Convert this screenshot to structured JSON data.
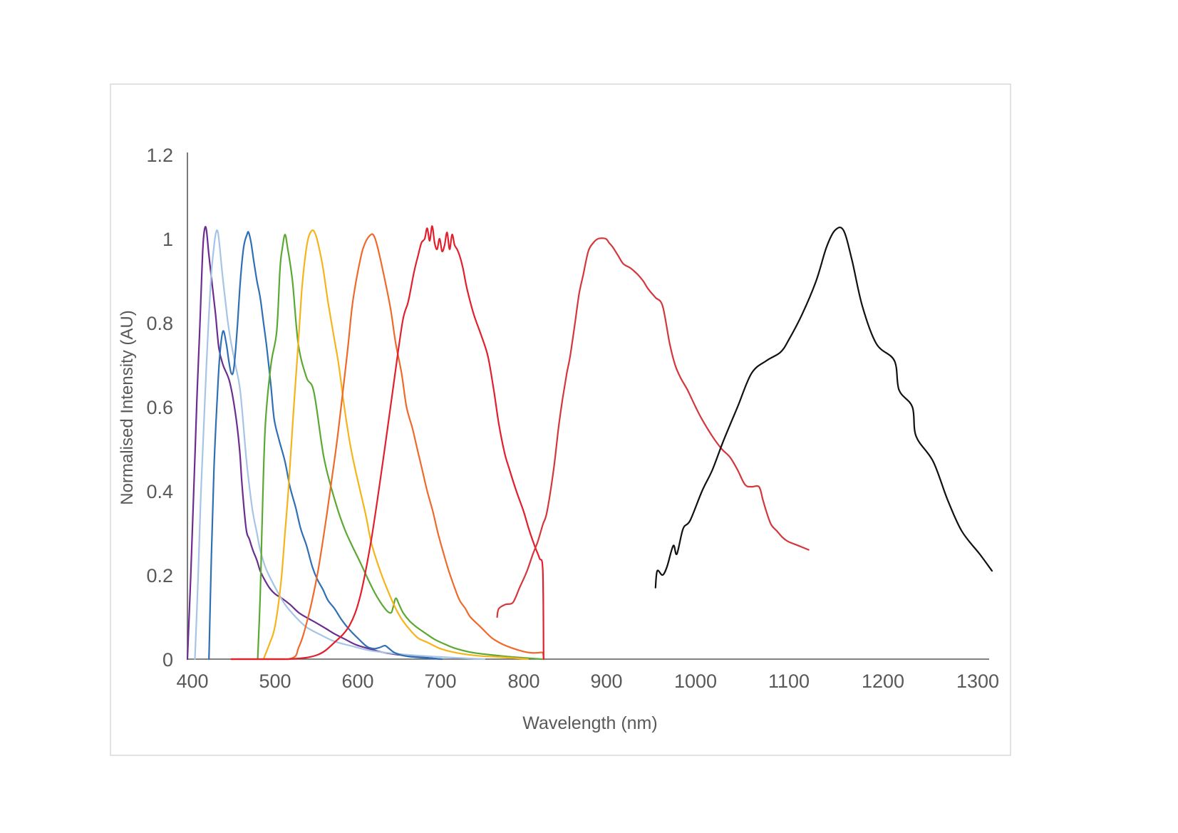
{
  "chart_data": {
    "type": "line",
    "xlabel": "Wavelength (nm)",
    "ylabel": "Normalised Intensity (AU)",
    "xlim": [
      394,
      1312
    ],
    "ylim": [
      0,
      1.2
    ],
    "x_ticks": [
      "400",
      "500",
      "600",
      "700",
      "800",
      "900",
      "1000",
      "1100",
      "1200",
      "1300"
    ],
    "y_ticks": [
      "0",
      "0.2",
      "0.4",
      "0.6",
      "0.8",
      "1",
      "1.2"
    ],
    "grid": false,
    "legend": "none",
    "series": [
      {
        "color": "#6b2d8f",
        "x": [
          394,
          398,
          403,
          406,
          409,
          411,
          413,
          415,
          417,
          420,
          424,
          428,
          432,
          437,
          445,
          452,
          457,
          460,
          465,
          469,
          473,
          478,
          482,
          487,
          493,
          500,
          508,
          518,
          529,
          540,
          551,
          562,
          572,
          585,
          598,
          615,
          633,
          655,
          676,
          700
        ],
        "y": [
          0,
          0.2,
          0.48,
          0.65,
          0.79,
          0.9,
          0.99,
          1.025,
          1.02,
          0.96,
          0.89,
          0.82,
          0.74,
          0.7,
          0.66,
          0.585,
          0.5,
          0.415,
          0.31,
          0.285,
          0.26,
          0.235,
          0.21,
          0.19,
          0.17,
          0.155,
          0.145,
          0.13,
          0.11,
          0.097,
          0.085,
          0.072,
          0.06,
          0.047,
          0.034,
          0.024,
          0.015,
          0.009,
          0.005,
          0
        ]
      },
      {
        "color": "#a5c4e6",
        "x": [
          403,
          407,
          410,
          413,
          417,
          420,
          423,
          426,
          428,
          430,
          432,
          436,
          440,
          443,
          447,
          452,
          458,
          465,
          469,
          473,
          478,
          482,
          488,
          495,
          503,
          512,
          525,
          538,
          555,
          572,
          595,
          616,
          650,
          684,
          720,
          753
        ],
        "y": [
          0,
          0.2,
          0.38,
          0.52,
          0.7,
          0.82,
          0.92,
          0.98,
          1.01,
          1.02,
          1.0,
          0.92,
          0.85,
          0.8,
          0.75,
          0.7,
          0.635,
          0.48,
          0.41,
          0.35,
          0.3,
          0.26,
          0.22,
          0.19,
          0.16,
          0.13,
          0.1,
          0.076,
          0.058,
          0.042,
          0.03,
          0.02,
          0.012,
          0.007,
          0.003,
          0
        ]
      },
      {
        "color": "#2f6fb5",
        "x": [
          420,
          423,
          426,
          430,
          433,
          437,
          441,
          444,
          447,
          450,
          454,
          458,
          462,
          466,
          468,
          471,
          474,
          478,
          482,
          486,
          490,
          495,
          499,
          505,
          512,
          518,
          525,
          531,
          538,
          545,
          551,
          558,
          564,
          572,
          580,
          590,
          600,
          611,
          620,
          627,
          633,
          638,
          646,
          663,
          702
        ],
        "y": [
          0,
          0.25,
          0.45,
          0.62,
          0.72,
          0.78,
          0.75,
          0.71,
          0.68,
          0.69,
          0.78,
          0.9,
          0.98,
          1.01,
          1.015,
          0.99,
          0.95,
          0.9,
          0.86,
          0.8,
          0.74,
          0.65,
          0.57,
          0.52,
          0.47,
          0.41,
          0.36,
          0.31,
          0.27,
          0.22,
          0.19,
          0.165,
          0.14,
          0.12,
          0.095,
          0.07,
          0.05,
          0.03,
          0.025,
          0.028,
          0.032,
          0.025,
          0.014,
          0.006,
          0
        ]
      },
      {
        "color": "#5ba832",
        "x": [
          479,
          482,
          484,
          488,
          495,
          502,
          506,
          509,
          512,
          515,
          521,
          528,
          538,
          547,
          559,
          572,
          585,
          603,
          620,
          633,
          640,
          643,
          646,
          650,
          655,
          663,
          672,
          683,
          693,
          706,
          719,
          740,
          771,
          800,
          822
        ],
        "y": [
          0,
          0.15,
          0.3,
          0.55,
          0.7,
          0.78,
          0.93,
          0.98,
          1.01,
          0.98,
          0.9,
          0.75,
          0.67,
          0.635,
          0.48,
          0.38,
          0.305,
          0.23,
          0.16,
          0.12,
          0.11,
          0.125,
          0.145,
          0.13,
          0.11,
          0.09,
          0.075,
          0.06,
          0.047,
          0.035,
          0.025,
          0.015,
          0.008,
          0.003,
          0
        ]
      },
      {
        "color": "#f5b41b",
        "x": [
          486,
          494,
          499,
          504,
          508,
          512,
          516,
          522,
          528,
          532,
          536,
          540,
          545,
          549,
          553,
          558,
          564,
          570,
          577,
          583,
          590,
          596,
          603,
          610,
          616,
          622,
          629,
          637,
          646,
          655,
          663,
          673,
          684,
          700,
          719,
          745,
          771,
          805
        ],
        "y": [
          0,
          0.04,
          0.07,
          0.13,
          0.2,
          0.3,
          0.4,
          0.58,
          0.75,
          0.87,
          0.95,
          1.0,
          1.02,
          1.01,
          0.98,
          0.93,
          0.85,
          0.78,
          0.7,
          0.61,
          0.52,
          0.46,
          0.4,
          0.34,
          0.28,
          0.24,
          0.2,
          0.16,
          0.12,
          0.09,
          0.07,
          0.05,
          0.04,
          0.025,
          0.015,
          0.008,
          0.005,
          0
        ]
      },
      {
        "color": "#ef6a2a",
        "x": [
          447,
          516,
          529,
          540,
          551,
          560,
          568,
          575,
          581,
          588,
          594,
          603,
          609,
          616,
          620,
          624,
          633,
          640,
          646,
          653,
          659,
          666,
          672,
          678,
          684,
          691,
          697,
          704,
          710,
          717,
          723,
          730,
          736,
          749,
          762,
          775,
          788,
          800,
          809,
          817,
          823,
          824
        ],
        "y": [
          0,
          0,
          0.03,
          0.1,
          0.2,
          0.31,
          0.42,
          0.52,
          0.62,
          0.74,
          0.85,
          0.95,
          0.99,
          1.01,
          1.005,
          0.98,
          0.9,
          0.83,
          0.75,
          0.68,
          0.6,
          0.55,
          0.5,
          0.45,
          0.4,
          0.35,
          0.3,
          0.25,
          0.21,
          0.17,
          0.14,
          0.12,
          0.1,
          0.075,
          0.05,
          0.035,
          0.025,
          0.018,
          0.015,
          0.015,
          0.015,
          0
        ]
      },
      {
        "color": "#e11f2d",
        "x": [
          447,
          516,
          551,
          572,
          590,
          603,
          616,
          629,
          641,
          654,
          661,
          668,
          673,
          677,
          681,
          684,
          687,
          690,
          693,
          696,
          699,
          702,
          705,
          708,
          711,
          714,
          717,
          720,
          723,
          727,
          732,
          740,
          749,
          757,
          764,
          770,
          777,
          783,
          791,
          800,
          806,
          813,
          819,
          823,
          824
        ],
        "y": [
          0,
          0,
          0.01,
          0.04,
          0.08,
          0.15,
          0.28,
          0.45,
          0.62,
          0.8,
          0.85,
          0.92,
          0.96,
          0.99,
          1.0,
          1.025,
          0.995,
          1.03,
          0.99,
          0.975,
          1.0,
          0.97,
          0.985,
          1.015,
          0.975,
          1.01,
          0.985,
          0.975,
          0.96,
          0.93,
          0.88,
          0.82,
          0.77,
          0.72,
          0.64,
          0.56,
          0.49,
          0.45,
          0.4,
          0.35,
          0.31,
          0.27,
          0.24,
          0.21,
          0
        ]
      },
      {
        "color": "#d4373b",
        "x": [
          768,
          770,
          778,
          787,
          795,
          804,
          811,
          817,
          823,
          828,
          836,
          842,
          847,
          852,
          856,
          862,
          867,
          872,
          878,
          884,
          890,
          899,
          903,
          907,
          913,
          919,
          927,
          935,
          941,
          947,
          955,
          963,
          971,
          977,
          983,
          991,
          1000,
          1007,
          1018,
          1028,
          1037,
          1045,
          1053,
          1060,
          1068,
          1072,
          1076,
          1081,
          1087,
          1093,
          1099,
          1110,
          1121
        ],
        "y": [
          0.1,
          0.12,
          0.13,
          0.135,
          0.17,
          0.21,
          0.25,
          0.28,
          0.32,
          0.35,
          0.45,
          0.55,
          0.62,
          0.68,
          0.72,
          0.8,
          0.87,
          0.915,
          0.97,
          0.99,
          1.0,
          1.0,
          0.99,
          0.98,
          0.96,
          0.94,
          0.93,
          0.915,
          0.9,
          0.88,
          0.86,
          0.84,
          0.75,
          0.7,
          0.67,
          0.64,
          0.6,
          0.57,
          0.53,
          0.5,
          0.48,
          0.45,
          0.415,
          0.41,
          0.41,
          0.38,
          0.35,
          0.32,
          0.305,
          0.29,
          0.28,
          0.27,
          0.26
        ]
      },
      {
        "color": "#111111",
        "x": [
          955,
          957,
          963,
          968,
          975,
          979,
          986,
          994,
          1007,
          1018,
          1030,
          1045,
          1060,
          1076,
          1091,
          1100,
          1114,
          1129,
          1140,
          1149,
          1158,
          1167,
          1178,
          1193,
          1212,
          1217,
          1231,
          1235,
          1253,
          1268,
          1283,
          1302,
          1315
        ],
        "y": [
          0.17,
          0.21,
          0.2,
          0.22,
          0.27,
          0.25,
          0.31,
          0.33,
          0.4,
          0.45,
          0.52,
          0.6,
          0.68,
          0.71,
          0.73,
          0.76,
          0.82,
          0.9,
          0.98,
          1.02,
          1.02,
          0.95,
          0.84,
          0.75,
          0.71,
          0.64,
          0.6,
          0.53,
          0.47,
          0.38,
          0.305,
          0.25,
          0.21
        ]
      }
    ]
  }
}
